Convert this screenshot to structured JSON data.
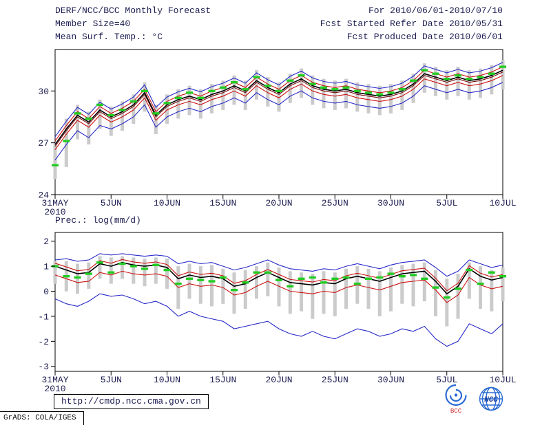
{
  "header": {
    "title": "DERF/NCC/BCC Monthly Forecast",
    "member_size": "Member Size=40",
    "variable_label": "Mean Surf. Temp.: °C",
    "for_range": "For 2010/06/01-2010/07/10",
    "refer_date": "Fcst Started Refer Date 2010/05/31",
    "produced_date": "Fcst Produced Date 2010/06/01"
  },
  "footer": {
    "url": "http://cmdp.ncc.cma.gov.cn",
    "grads_credit": "GrADS: COLA/IGES",
    "bcc_logo_text": "BCC",
    "ncc_logo_text": "NCC"
  },
  "colors": {
    "text": "#1d1d52",
    "axis": "#000000",
    "envelope_blue": "#2727c8",
    "quartile_red": "#cc1111",
    "median_maroon": "#7a1010",
    "mean_black": "#000000",
    "obs_green": "#22cc22",
    "spread_gray": "#cbcbcb"
  },
  "chart_data": [
    {
      "type": "line",
      "title": "Mean Surf. Temp.: °C",
      "xlabel": "",
      "ylabel": "°C",
      "x_tick_labels": [
        "31MAY",
        "5JUN",
        "10JUN",
        "15JUN",
        "20JUN",
        "25JUN",
        "30JUN",
        "5JUL",
        "10JUL"
      ],
      "x_tick_days": [
        0,
        5,
        10,
        15,
        20,
        25,
        30,
        35,
        40
      ],
      "x_sub_label": "2010",
      "ylim": [
        24,
        32.4
      ],
      "yticks": [
        24,
        27,
        30
      ],
      "legend": "off",
      "grid": "off",
      "series": [
        {
          "name": "ensemble-max",
          "color": "#2727c8",
          "width": 1.1,
          "values": [
            27.35,
            28.25,
            29.05,
            28.65,
            29.35,
            28.95,
            29.25,
            29.65,
            30.35,
            29.05,
            29.65,
            29.95,
            30.15,
            29.95,
            30.25,
            30.45,
            30.75,
            30.45,
            31.05,
            30.65,
            30.35,
            30.85,
            31.15,
            30.75,
            30.55,
            30.45,
            30.55,
            30.35,
            30.25,
            30.15,
            30.25,
            30.45,
            30.85,
            31.45,
            31.25,
            31.05,
            31.25,
            31.05,
            31.15,
            31.35,
            31.65
          ]
        },
        {
          "name": "ensemble-min",
          "color": "#2727c8",
          "width": 1.1,
          "values": [
            26.0,
            26.9,
            27.7,
            27.3,
            28.0,
            27.8,
            28.1,
            28.5,
            29.2,
            27.9,
            28.5,
            28.8,
            29.0,
            28.8,
            29.1,
            29.3,
            29.6,
            29.3,
            29.9,
            29.5,
            29.2,
            29.7,
            30.0,
            29.6,
            29.4,
            29.3,
            29.4,
            29.2,
            29.1,
            29.0,
            29.1,
            29.3,
            29.7,
            30.3,
            30.1,
            29.9,
            30.1,
            29.9,
            30.0,
            30.2,
            30.5
          ]
        },
        {
          "name": "upper-quartile",
          "color": "#cc1111",
          "width": 1.1,
          "values": [
            27.1,
            28.0,
            28.8,
            28.4,
            29.1,
            28.7,
            29.0,
            29.4,
            30.1,
            28.8,
            29.4,
            29.7,
            29.9,
            29.7,
            30.0,
            30.2,
            30.5,
            30.2,
            30.8,
            30.4,
            30.1,
            30.6,
            30.9,
            30.5,
            30.3,
            30.2,
            30.3,
            30.1,
            30.0,
            29.9,
            30.0,
            30.2,
            30.6,
            31.2,
            31.0,
            30.8,
            31.0,
            30.8,
            30.9,
            31.1,
            31.4
          ]
        },
        {
          "name": "lower-quartile",
          "color": "#cc1111",
          "width": 1.1,
          "values": [
            26.6,
            27.5,
            28.3,
            27.9,
            28.6,
            28.2,
            28.5,
            28.9,
            29.6,
            28.3,
            28.9,
            29.2,
            29.4,
            29.2,
            29.5,
            29.7,
            30.0,
            29.7,
            30.3,
            29.9,
            29.6,
            30.1,
            30.4,
            30.0,
            29.8,
            29.7,
            29.8,
            29.6,
            29.5,
            29.4,
            29.5,
            29.7,
            30.1,
            30.7,
            30.5,
            30.3,
            30.5,
            30.3,
            30.4,
            30.6,
            30.9
          ]
        },
        {
          "name": "median",
          "color": "#7a1010",
          "width": 1.1,
          "values": [
            26.8,
            27.7,
            28.5,
            28.1,
            28.8,
            28.4,
            28.7,
            29.1,
            29.8,
            28.5,
            29.1,
            29.4,
            29.6,
            29.4,
            29.7,
            29.9,
            30.2,
            29.9,
            30.5,
            30.1,
            29.8,
            30.3,
            30.6,
            30.2,
            30.0,
            29.9,
            30.0,
            29.8,
            29.7,
            29.6,
            29.7,
            29.9,
            30.3,
            30.9,
            30.7,
            30.5,
            30.7,
            30.5,
            30.6,
            30.8,
            31.1
          ]
        },
        {
          "name": "ensemble-mean",
          "color": "#000000",
          "width": 1.6,
          "values": [
            26.9,
            27.8,
            28.6,
            28.2,
            28.9,
            28.5,
            28.8,
            29.2,
            29.9,
            28.6,
            29.2,
            29.5,
            29.7,
            29.5,
            29.8,
            30.0,
            30.3,
            30.0,
            30.6,
            30.2,
            29.9,
            30.4,
            30.7,
            30.3,
            30.1,
            30.0,
            30.1,
            29.9,
            29.8,
            29.7,
            29.8,
            30.0,
            30.4,
            31.0,
            30.8,
            30.6,
            30.8,
            30.6,
            30.7,
            30.9,
            31.2
          ]
        }
      ],
      "bars": {
        "name": "member-spread",
        "color": "#cbcbcb",
        "low": [
          24.9,
          25.6,
          27.2,
          26.9,
          27.8,
          27.4,
          27.7,
          28.1,
          28.8,
          27.5,
          28.1,
          28.4,
          28.6,
          28.4,
          28.7,
          28.9,
          29.2,
          28.9,
          29.5,
          29.1,
          28.8,
          29.3,
          29.6,
          29.2,
          29.0,
          28.9,
          29.0,
          28.8,
          28.7,
          28.6,
          28.7,
          28.9,
          29.3,
          29.9,
          29.7,
          29.5,
          29.7,
          29.5,
          29.6,
          29.8,
          30.1
        ],
        "high": [
          27.0,
          28.4,
          29.2,
          28.8,
          29.5,
          29.1,
          29.4,
          29.8,
          30.5,
          29.2,
          29.8,
          30.1,
          30.3,
          30.1,
          30.4,
          30.6,
          30.9,
          30.6,
          31.2,
          30.8,
          30.5,
          31.0,
          31.3,
          30.9,
          30.7,
          30.6,
          30.7,
          30.5,
          30.4,
          30.3,
          30.4,
          30.6,
          31.0,
          31.6,
          31.4,
          31.2,
          31.4,
          31.2,
          31.3,
          31.5,
          31.8
        ]
      },
      "obs": {
        "name": "observation",
        "color": "#22cc22",
        "values": [
          25.7,
          27.1,
          28.7,
          28.4,
          29.2,
          28.6,
          28.9,
          29.4,
          30.0,
          28.7,
          29.3,
          29.6,
          29.9,
          29.6,
          30.0,
          30.2,
          30.5,
          30.1,
          30.8,
          30.3,
          30.0,
          30.6,
          30.9,
          30.4,
          30.2,
          30.1,
          30.2,
          30.0,
          29.9,
          29.8,
          29.9,
          30.1,
          30.6,
          31.2,
          31.0,
          30.7,
          30.9,
          30.7,
          30.8,
          31.0,
          31.4
        ]
      }
    },
    {
      "type": "line",
      "title": "Prec.: log(mm/d)",
      "xlabel": "",
      "ylabel": "log(mm/d)",
      "x_tick_labels": [
        "31MAY",
        "5JUN",
        "10JUN",
        "15JUN",
        "20JUN",
        "25JUN",
        "30JUN",
        "5JUL",
        "10JUL"
      ],
      "x_tick_days": [
        0,
        5,
        10,
        15,
        20,
        25,
        30,
        35,
        40
      ],
      "x_sub_label": "2010",
      "ylim": [
        -3.2,
        2.35
      ],
      "yticks": [
        -3,
        -2,
        -1,
        0,
        1,
        2
      ],
      "legend": "off",
      "grid": "off",
      "series": [
        {
          "name": "ensemble-max",
          "color": "#2727c8",
          "width": 1.1,
          "values": [
            1.25,
            1.3,
            1.2,
            1.25,
            1.5,
            1.45,
            1.5,
            1.45,
            1.4,
            1.45,
            1.4,
            1.1,
            1.2,
            1.1,
            1.15,
            1.0,
            0.85,
            0.95,
            1.1,
            1.25,
            1.05,
            0.9,
            0.85,
            0.8,
            0.9,
            0.85,
            1.0,
            1.1,
            1.0,
            0.9,
            1.05,
            1.15,
            1.2,
            1.25,
            0.95,
            0.6,
            0.8,
            1.25,
            1.1,
            0.95,
            1.05
          ]
        },
        {
          "name": "ensemble-min",
          "color": "#2727c8",
          "width": 1.1,
          "values": [
            -0.3,
            -0.5,
            -0.6,
            -0.4,
            -0.1,
            -0.2,
            -0.15,
            -0.3,
            -0.5,
            -0.4,
            -0.6,
            -1.0,
            -0.8,
            -1.0,
            -1.1,
            -1.2,
            -1.5,
            -1.4,
            -1.3,
            -1.2,
            -1.5,
            -1.7,
            -1.8,
            -1.6,
            -1.8,
            -1.9,
            -1.7,
            -1.5,
            -1.6,
            -1.8,
            -1.7,
            -1.5,
            -1.6,
            -1.4,
            -1.9,
            -2.2,
            -2.0,
            -1.3,
            -1.5,
            -1.7,
            -1.3
          ]
        },
        {
          "name": "upper-quartile",
          "color": "#cc1111",
          "width": 1.1,
          "values": [
            1.12,
            0.97,
            0.82,
            0.87,
            1.22,
            1.12,
            1.27,
            1.17,
            1.12,
            1.17,
            1.07,
            0.62,
            0.77,
            0.67,
            0.72,
            0.62,
            0.32,
            0.42,
            0.67,
            0.87,
            0.67,
            0.47,
            0.42,
            0.37,
            0.47,
            0.42,
            0.62,
            0.72,
            0.62,
            0.52,
            0.67,
            0.82,
            0.87,
            0.92,
            0.52,
            0.02,
            0.32,
            1.02,
            0.72,
            0.57,
            0.67
          ]
        },
        {
          "name": "lower-quartile",
          "color": "#cc1111",
          "width": 1.1,
          "values": [
            0.65,
            0.5,
            0.35,
            0.4,
            0.75,
            0.65,
            0.8,
            0.7,
            0.65,
            0.7,
            0.6,
            0.15,
            0.3,
            0.2,
            0.25,
            0.15,
            -0.15,
            -0.05,
            0.2,
            0.4,
            0.2,
            0.0,
            -0.05,
            -0.1,
            0.0,
            -0.05,
            0.15,
            0.25,
            0.15,
            0.05,
            0.2,
            0.35,
            0.4,
            0.45,
            0.05,
            -0.45,
            -0.15,
            0.55,
            0.25,
            0.1,
            0.2
          ]
        },
        {
          "name": "ensemble-mean",
          "color": "#000000",
          "width": 1.6,
          "values": [
            1.0,
            0.85,
            0.7,
            0.75,
            1.1,
            1.0,
            1.15,
            1.05,
            1.0,
            1.05,
            0.95,
            0.5,
            0.65,
            0.55,
            0.6,
            0.5,
            0.2,
            0.3,
            0.55,
            0.75,
            0.55,
            0.35,
            0.3,
            0.25,
            0.35,
            0.3,
            0.5,
            0.6,
            0.5,
            0.4,
            0.55,
            0.7,
            0.75,
            0.8,
            0.4,
            -0.1,
            0.2,
            0.9,
            0.6,
            0.45,
            0.55
          ]
        }
      ],
      "bars": {
        "name": "member-spread",
        "color": "#cbcbcb",
        "low": [
          0.3,
          0.0,
          -0.1,
          0.1,
          0.5,
          0.3,
          0.5,
          0.3,
          0.2,
          0.3,
          0.1,
          -0.7,
          -0.3,
          -0.5,
          -0.6,
          -0.5,
          -0.9,
          -0.7,
          -0.3,
          -0.2,
          -0.6,
          -0.9,
          -0.8,
          -1.1,
          -0.9,
          -1.0,
          -0.7,
          -0.5,
          -0.7,
          -1.0,
          -0.8,
          -0.5,
          -0.6,
          -0.4,
          -1.0,
          -1.4,
          -1.1,
          -0.3,
          -0.7,
          -0.8,
          -0.4
        ],
        "high": [
          1.2,
          1.2,
          1.1,
          1.15,
          1.4,
          1.35,
          1.4,
          1.35,
          1.3,
          1.35,
          1.3,
          1.0,
          1.1,
          1.0,
          1.05,
          0.9,
          0.75,
          0.85,
          1.0,
          1.15,
          0.95,
          0.8,
          0.75,
          0.7,
          0.8,
          0.75,
          0.9,
          1.0,
          0.9,
          0.8,
          0.95,
          1.05,
          1.1,
          1.15,
          0.85,
          0.5,
          0.7,
          1.15,
          1.0,
          0.85,
          0.95
        ]
      },
      "obs": {
        "name": "observation",
        "color": "#22cc22",
        "values": [
          1.0,
          0.6,
          0.55,
          0.7,
          1.15,
          0.75,
          1.1,
          1.0,
          0.9,
          1.05,
          0.85,
          0.3,
          0.5,
          0.45,
          0.4,
          0.55,
          0.05,
          0.35,
          0.75,
          0.75,
          0.45,
          0.2,
          0.5,
          0.55,
          0.35,
          0.5,
          0.55,
          0.3,
          0.5,
          0.55,
          0.7,
          0.6,
          0.65,
          0.5,
          0.15,
          -0.25,
          0.1,
          0.85,
          0.3,
          0.75,
          0.6
        ]
      }
    }
  ]
}
